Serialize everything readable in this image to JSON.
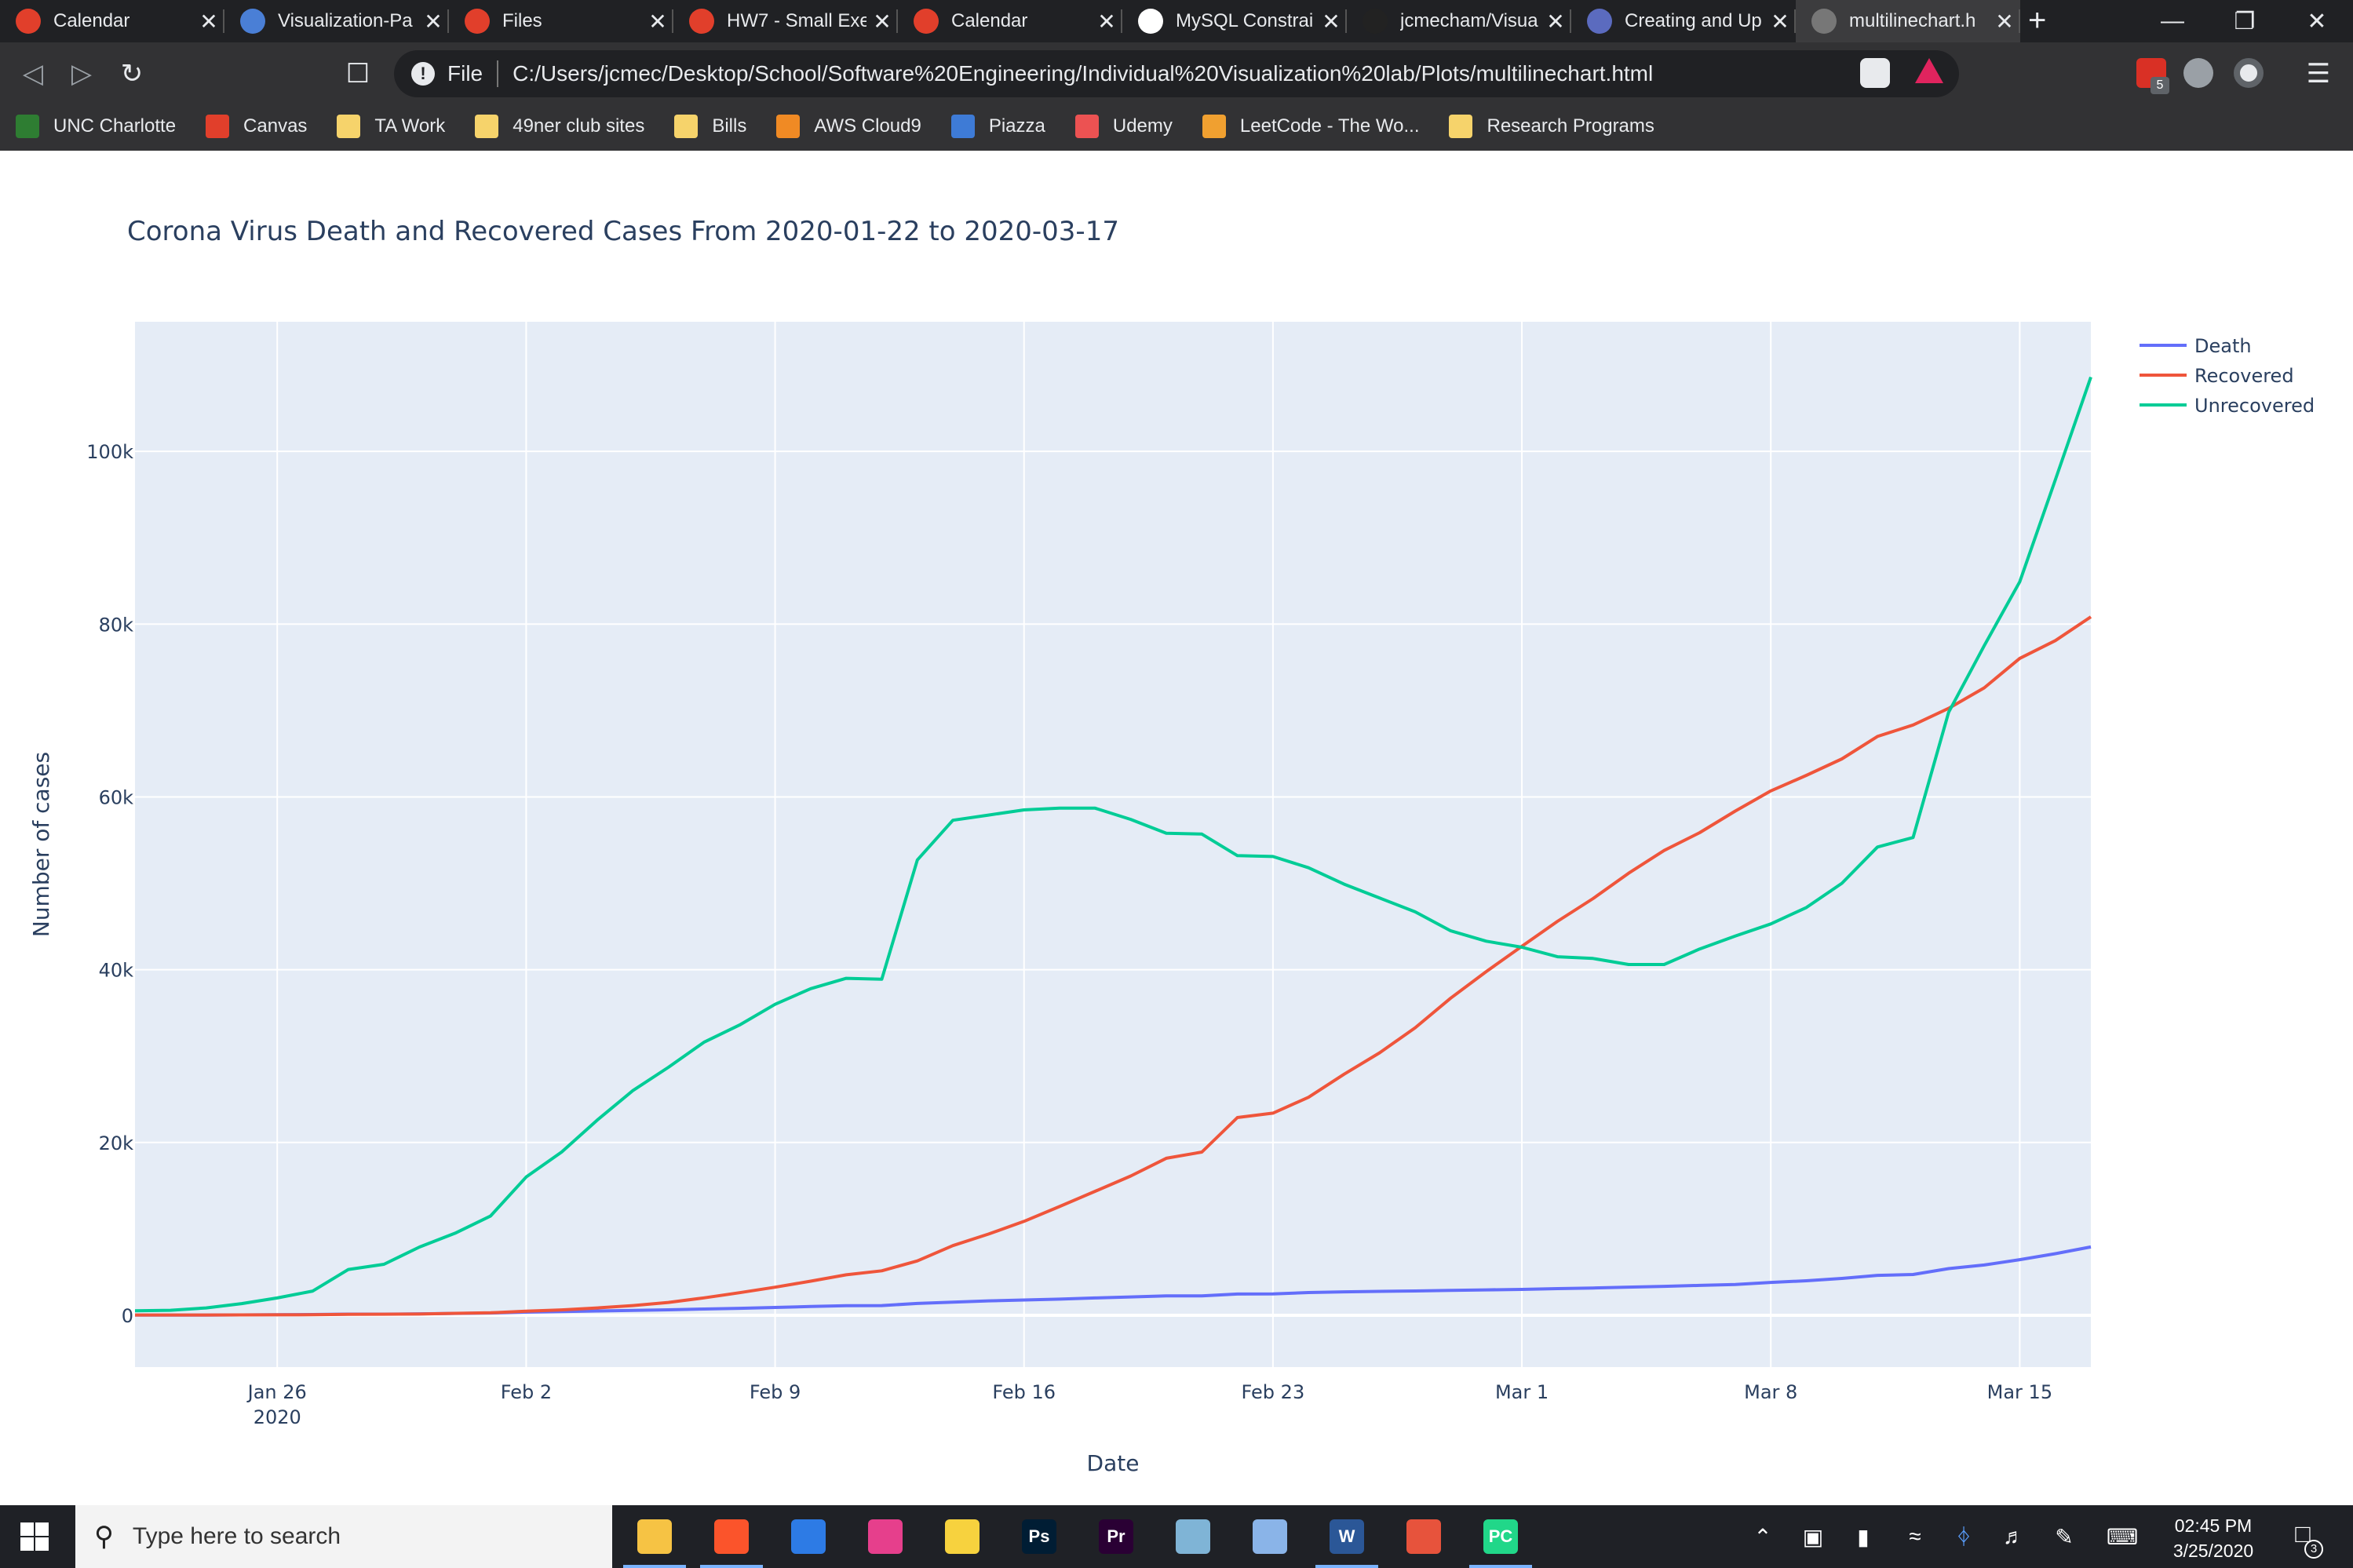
{
  "browser": {
    "tabs": [
      {
        "title": "Calendar",
        "icon": "canvas-icon",
        "color": "#e13f2b"
      },
      {
        "title": "Visualization-Pa",
        "icon": "word-icon",
        "color": "#4a7fd6"
      },
      {
        "title": "Files",
        "icon": "canvas-icon",
        "color": "#e13f2b"
      },
      {
        "title": "HW7 - Small Exe",
        "icon": "canvas-icon",
        "color": "#e13f2b"
      },
      {
        "title": "Calendar",
        "icon": "canvas-icon",
        "color": "#e13f2b"
      },
      {
        "title": "MySQL Constrai",
        "icon": "w3schools-icon",
        "color": "#ffffff"
      },
      {
        "title": "jcmecham/Visua",
        "icon": "github-icon",
        "color": "#222222"
      },
      {
        "title": "Creating and Up",
        "icon": "chart-icon",
        "color": "#5b6bbf"
      },
      {
        "title": "multilinechart.h",
        "icon": "globe-icon",
        "color": "#777777"
      }
    ],
    "address": {
      "scheme_label": "File",
      "url": "C:/Users/jcmec/Desktop/School/Software%20Engineering/Individual%20Visualization%20lab/Plots/multilinechart.html"
    },
    "extension_badge": "5",
    "bookmarks": [
      {
        "label": "UNC Charlotte",
        "icon": "unc-icon",
        "color": "#2e7d32"
      },
      {
        "label": "Canvas",
        "icon": "canvas-icon",
        "color": "#e13f2b"
      },
      {
        "label": "TA Work",
        "icon": "folder-icon",
        "color": "#f6d36b"
      },
      {
        "label": "49ner club sites",
        "icon": "folder-icon",
        "color": "#f6d36b"
      },
      {
        "label": "Bills",
        "icon": "folder-icon",
        "color": "#f6d36b"
      },
      {
        "label": "AWS Cloud9",
        "icon": "aws-icon",
        "color": "#f08a24"
      },
      {
        "label": "Piazza",
        "icon": "piazza-icon",
        "color": "#3e7bd6"
      },
      {
        "label": "Udemy",
        "icon": "udemy-icon",
        "color": "#ec5252"
      },
      {
        "label": "LeetCode - The Wo...",
        "icon": "leetcode-icon",
        "color": "#f0a030"
      },
      {
        "label": "Research Programs",
        "icon": "folder-icon",
        "color": "#f6d36b"
      }
    ]
  },
  "chart_data": {
    "type": "line",
    "title": "Corona Virus Death and Recovered Cases From 2020-01-22 to 2020-03-17",
    "xlabel": "Date",
    "ylabel": "Number of cases",
    "xrange": [
      "2020-01-22",
      "2020-03-17"
    ],
    "ylim": [
      -6000,
      115000
    ],
    "grid": true,
    "legend_position": "top-right",
    "x_ticks": [
      {
        "date": "2020-01-26",
        "label": "Jan 26",
        "sublabel": "2020"
      },
      {
        "date": "2020-02-02",
        "label": "Feb 2",
        "sublabel": ""
      },
      {
        "date": "2020-02-09",
        "label": "Feb 9",
        "sublabel": ""
      },
      {
        "date": "2020-02-16",
        "label": "Feb 16",
        "sublabel": ""
      },
      {
        "date": "2020-02-23",
        "label": "Feb 23",
        "sublabel": ""
      },
      {
        "date": "2020-03-01",
        "label": "Mar 1",
        "sublabel": ""
      },
      {
        "date": "2020-03-08",
        "label": "Mar 8",
        "sublabel": ""
      },
      {
        "date": "2020-03-15",
        "label": "Mar 15",
        "sublabel": ""
      }
    ],
    "y_ticks": [
      {
        "value": 0,
        "label": "0"
      },
      {
        "value": 20000,
        "label": "20k"
      },
      {
        "value": 40000,
        "label": "40k"
      },
      {
        "value": 60000,
        "label": "60k"
      },
      {
        "value": 80000,
        "label": "80k"
      },
      {
        "value": 100000,
        "label": "100k"
      }
    ],
    "dates": [
      "2020-01-22",
      "2020-01-23",
      "2020-01-24",
      "2020-01-25",
      "2020-01-26",
      "2020-01-27",
      "2020-01-28",
      "2020-01-29",
      "2020-01-30",
      "2020-01-31",
      "2020-02-01",
      "2020-02-02",
      "2020-02-03",
      "2020-02-04",
      "2020-02-05",
      "2020-02-06",
      "2020-02-07",
      "2020-02-08",
      "2020-02-09",
      "2020-02-10",
      "2020-02-11",
      "2020-02-12",
      "2020-02-13",
      "2020-02-14",
      "2020-02-15",
      "2020-02-16",
      "2020-02-17",
      "2020-02-18",
      "2020-02-19",
      "2020-02-20",
      "2020-02-21",
      "2020-02-22",
      "2020-02-23",
      "2020-02-24",
      "2020-02-25",
      "2020-02-26",
      "2020-02-27",
      "2020-02-28",
      "2020-02-29",
      "2020-03-01",
      "2020-03-02",
      "2020-03-03",
      "2020-03-04",
      "2020-03-05",
      "2020-03-06",
      "2020-03-07",
      "2020-03-08",
      "2020-03-09",
      "2020-03-10",
      "2020-03-11",
      "2020-03-12",
      "2020-03-13",
      "2020-03-14",
      "2020-03-15",
      "2020-03-16",
      "2020-03-17"
    ],
    "series": [
      {
        "name": "Death",
        "color": "#636efa",
        "values": [
          17,
          18,
          26,
          42,
          56,
          82,
          131,
          133,
          171,
          213,
          259,
          362,
          426,
          492,
          564,
          634,
          719,
          806,
          906,
          1013,
          1113,
          1118,
          1371,
          1523,
          1666,
          1770,
          1868,
          2007,
          2122,
          2247,
          2251,
          2458,
          2469,
          2629,
          2708,
          2770,
          2814,
          2872,
          2941,
          2996,
          3085,
          3160,
          3254,
          3348,
          3460,
          3558,
          3803,
          3996,
          4262,
          4615,
          4720,
          5404,
          5819,
          6440,
          7126,
          7905
        ]
      },
      {
        "name": "Recovered",
        "color": "#ef553b",
        "values": [
          28,
          30,
          36,
          39,
          52,
          61,
          107,
          126,
          143,
          222,
          284,
          472,
          623,
          852,
          1124,
          1487,
          2011,
          2616,
          3244,
          3946,
          4683,
          5150,
          6295,
          8058,
          9395,
          10865,
          12583,
          14352,
          16121,
          18177,
          18890,
          22886,
          23394,
          25227,
          27905,
          30384,
          33277,
          36711,
          39782,
          42716,
          45602,
          48228,
          51170,
          53796,
          55865,
          58359,
          60694,
          62494,
          64404,
          67003,
          68324,
          70251,
          72624,
          76034,
          78088,
          80840
        ]
      },
      {
        "name": "Unrecovered",
        "color": "#00cc96",
        "values": [
          510,
          580,
          850,
          1350,
          2000,
          2800,
          5300,
          5900,
          7900,
          9500,
          11500,
          16000,
          18900,
          22600,
          26000,
          28700,
          31600,
          33600,
          36000,
          37800,
          39000,
          38900,
          52700,
          57300,
          57900,
          58500,
          58700,
          58700,
          57400,
          55800,
          55700,
          53200,
          53100,
          51800,
          49900,
          48300,
          46700,
          44500,
          43300,
          42600,
          41500,
          41300,
          40600,
          40600,
          42400,
          43900,
          45300,
          47200,
          50000,
          54200,
          55300,
          69800,
          77500,
          84900,
          96700,
          108600
        ]
      }
    ]
  },
  "taskbar": {
    "search_placeholder": "Type here to search",
    "apps": [
      {
        "name": "file-explorer",
        "icon": "folder-icon",
        "color": "#f6c344",
        "label": "",
        "running": true
      },
      {
        "name": "brave",
        "icon": "brave-icon",
        "color": "#fb542b",
        "label": "",
        "running": true
      },
      {
        "name": "calendar",
        "icon": "calendar-icon",
        "color": "#2d7be5",
        "label": "",
        "running": false
      },
      {
        "name": "itunes",
        "icon": "music-icon",
        "color": "#e63f8c",
        "label": "",
        "running": false
      },
      {
        "name": "sticky-notes",
        "icon": "note-icon",
        "color": "#f7d23e",
        "label": "",
        "running": false
      },
      {
        "name": "photoshop",
        "icon": "photoshop-icon",
        "color": "#001d34",
        "label": "Ps",
        "running": false
      },
      {
        "name": "premiere",
        "icon": "premiere-icon",
        "color": "#2a0034",
        "label": "Pr",
        "running": false
      },
      {
        "name": "notepad",
        "icon": "notepad-icon",
        "color": "#7fb4d6",
        "label": "",
        "running": false
      },
      {
        "name": "snip",
        "icon": "snip-icon",
        "color": "#8ab4e8",
        "label": "",
        "running": false
      },
      {
        "name": "word",
        "icon": "word-icon",
        "color": "#2b5797",
        "label": "W",
        "running": true
      },
      {
        "name": "git",
        "icon": "git-icon",
        "color": "#e7533c",
        "label": "",
        "running": false
      },
      {
        "name": "pycharm",
        "icon": "pycharm-icon",
        "color": "#21d789",
        "label": "PC",
        "running": true
      }
    ],
    "time": "02:45 PM",
    "date": "3/25/2020",
    "notification_count": "3"
  }
}
